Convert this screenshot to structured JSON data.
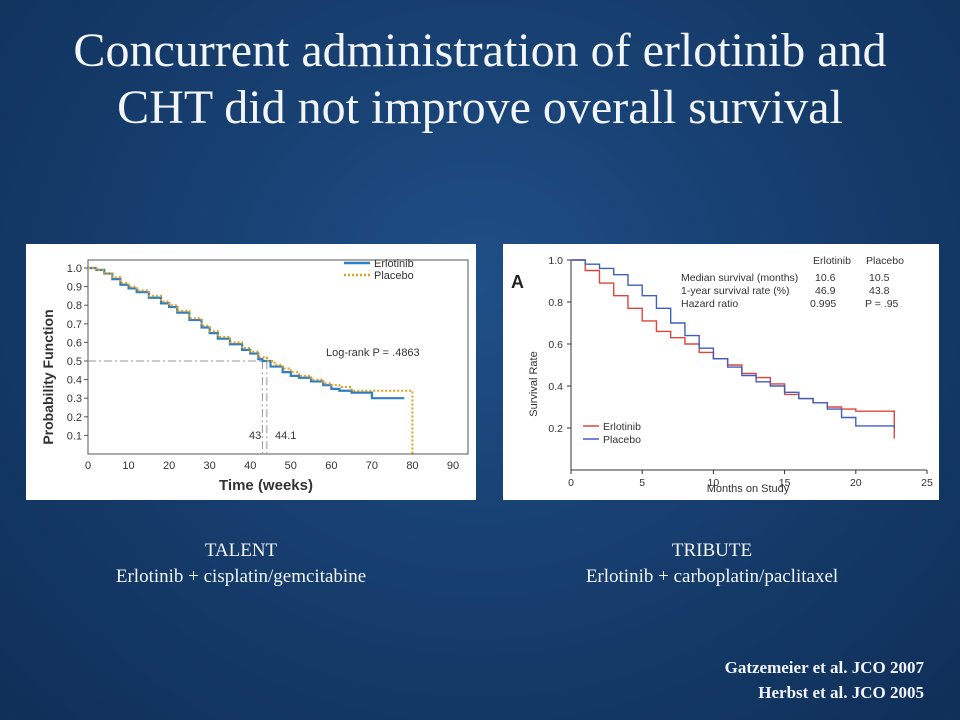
{
  "slide": {
    "title_line1": "Concurrent administration of erlotinib and",
    "title_line2": "CHT did not improve overall survival",
    "references": [
      "Gatzemeier et al. JCO 2007",
      "Herbst et al. JCO 2005"
    ]
  },
  "captions": [
    {
      "trial": "TALENT",
      "regimen": "Erlotinib + cisplatin/gemcitabine"
    },
    {
      "trial": "TRIBUTE",
      "regimen": "Erlotinib + carboplatin/paclitaxel"
    }
  ],
  "colors": {
    "background": "#173f70",
    "talent_erlotinib": "#2f7fc1",
    "talent_placebo": "#e0a020",
    "tribute_erlotinib": "#e0453a",
    "tribute_placebo": "#3f5fbf"
  },
  "chart_data": [
    {
      "type": "line",
      "title": "",
      "xlabel": "Time (weeks)",
      "ylabel": "Probability Function",
      "xlim": [
        0,
        90
      ],
      "ylim": [
        0,
        1.0
      ],
      "xticks": [
        0,
        10,
        20,
        30,
        40,
        50,
        60,
        70,
        80,
        90
      ],
      "yticks": [
        0.1,
        0.2,
        0.3,
        0.4,
        0.5,
        0.6,
        0.7,
        0.8,
        0.9,
        1.0
      ],
      "legend_position": "top-right",
      "annotations": {
        "logrank": "Log-rank P = .4863",
        "median_erlotinib": "43",
        "median_placebo": "44.1"
      },
      "series": [
        {
          "name": "Erlotinib",
          "x": [
            0,
            2,
            4,
            6,
            8,
            10,
            12,
            15,
            18,
            20,
            22,
            25,
            28,
            30,
            32,
            35,
            38,
            40,
            42,
            43,
            45,
            48,
            50,
            52,
            55,
            58,
            60,
            62,
            65,
            68,
            70,
            75,
            78
          ],
          "y": [
            1.0,
            0.99,
            0.97,
            0.94,
            0.91,
            0.89,
            0.87,
            0.84,
            0.81,
            0.79,
            0.76,
            0.72,
            0.68,
            0.65,
            0.62,
            0.59,
            0.56,
            0.54,
            0.51,
            0.5,
            0.47,
            0.44,
            0.42,
            0.41,
            0.39,
            0.37,
            0.35,
            0.34,
            0.33,
            0.33,
            0.3,
            0.3,
            0.3
          ]
        },
        {
          "name": "Placebo",
          "x": [
            0,
            2,
            4,
            6,
            8,
            10,
            12,
            15,
            18,
            20,
            22,
            25,
            28,
            30,
            32,
            35,
            38,
            40,
            42,
            44.1,
            46,
            48,
            50,
            52,
            55,
            58,
            60,
            62,
            65,
            70,
            75,
            80,
            80
          ],
          "y": [
            1.0,
            0.99,
            0.97,
            0.95,
            0.92,
            0.9,
            0.88,
            0.85,
            0.82,
            0.8,
            0.77,
            0.73,
            0.69,
            0.66,
            0.63,
            0.6,
            0.57,
            0.55,
            0.52,
            0.5,
            0.48,
            0.46,
            0.44,
            0.42,
            0.4,
            0.38,
            0.37,
            0.36,
            0.34,
            0.34,
            0.34,
            0.34,
            0.0
          ]
        }
      ]
    },
    {
      "type": "line",
      "title": "",
      "panel_label": "A",
      "xlabel": "Months on Study",
      "ylabel": "Survival Rate",
      "xlim": [
        0,
        25
      ],
      "ylim": [
        0,
        1.0
      ],
      "xticks": [
        0,
        5,
        10,
        15,
        20,
        25
      ],
      "yticks": [
        0.2,
        0.4,
        0.6,
        0.8,
        1.0
      ],
      "legend_position": "bottom-left",
      "stats_table": {
        "headers": [
          "",
          "Erlotinib",
          "Placebo"
        ],
        "rows": [
          [
            "Median survival (months)",
            "10.6",
            "10.5"
          ],
          [
            "1-year survival rate (%)",
            "46.9",
            "43.8"
          ],
          [
            "Hazard ratio",
            "0.995",
            "P = .95"
          ]
        ]
      },
      "series": [
        {
          "name": "Erlotinib",
          "x": [
            0,
            1,
            2,
            3,
            4,
            5,
            6,
            7,
            8,
            9,
            10,
            11,
            12,
            13,
            14,
            15,
            16,
            17,
            18,
            19,
            20,
            21,
            22,
            22.7,
            22.7
          ],
          "y": [
            1.0,
            0.95,
            0.89,
            0.83,
            0.77,
            0.71,
            0.66,
            0.63,
            0.6,
            0.56,
            0.53,
            0.5,
            0.46,
            0.44,
            0.41,
            0.36,
            0.34,
            0.32,
            0.3,
            0.29,
            0.28,
            0.28,
            0.28,
            0.28,
            0.15
          ]
        },
        {
          "name": "Placebo",
          "x": [
            0,
            1,
            2,
            3,
            4,
            5,
            6,
            7,
            8,
            9,
            10,
            11,
            12,
            13,
            14,
            15,
            16,
            17,
            18,
            19,
            20,
            21,
            22,
            22.7,
            22.7
          ],
          "y": [
            1.0,
            0.98,
            0.96,
            0.93,
            0.88,
            0.83,
            0.77,
            0.7,
            0.64,
            0.58,
            0.53,
            0.49,
            0.45,
            0.42,
            0.4,
            0.37,
            0.34,
            0.32,
            0.29,
            0.25,
            0.21,
            0.21,
            0.21,
            0.21,
            0.2
          ]
        }
      ]
    }
  ]
}
